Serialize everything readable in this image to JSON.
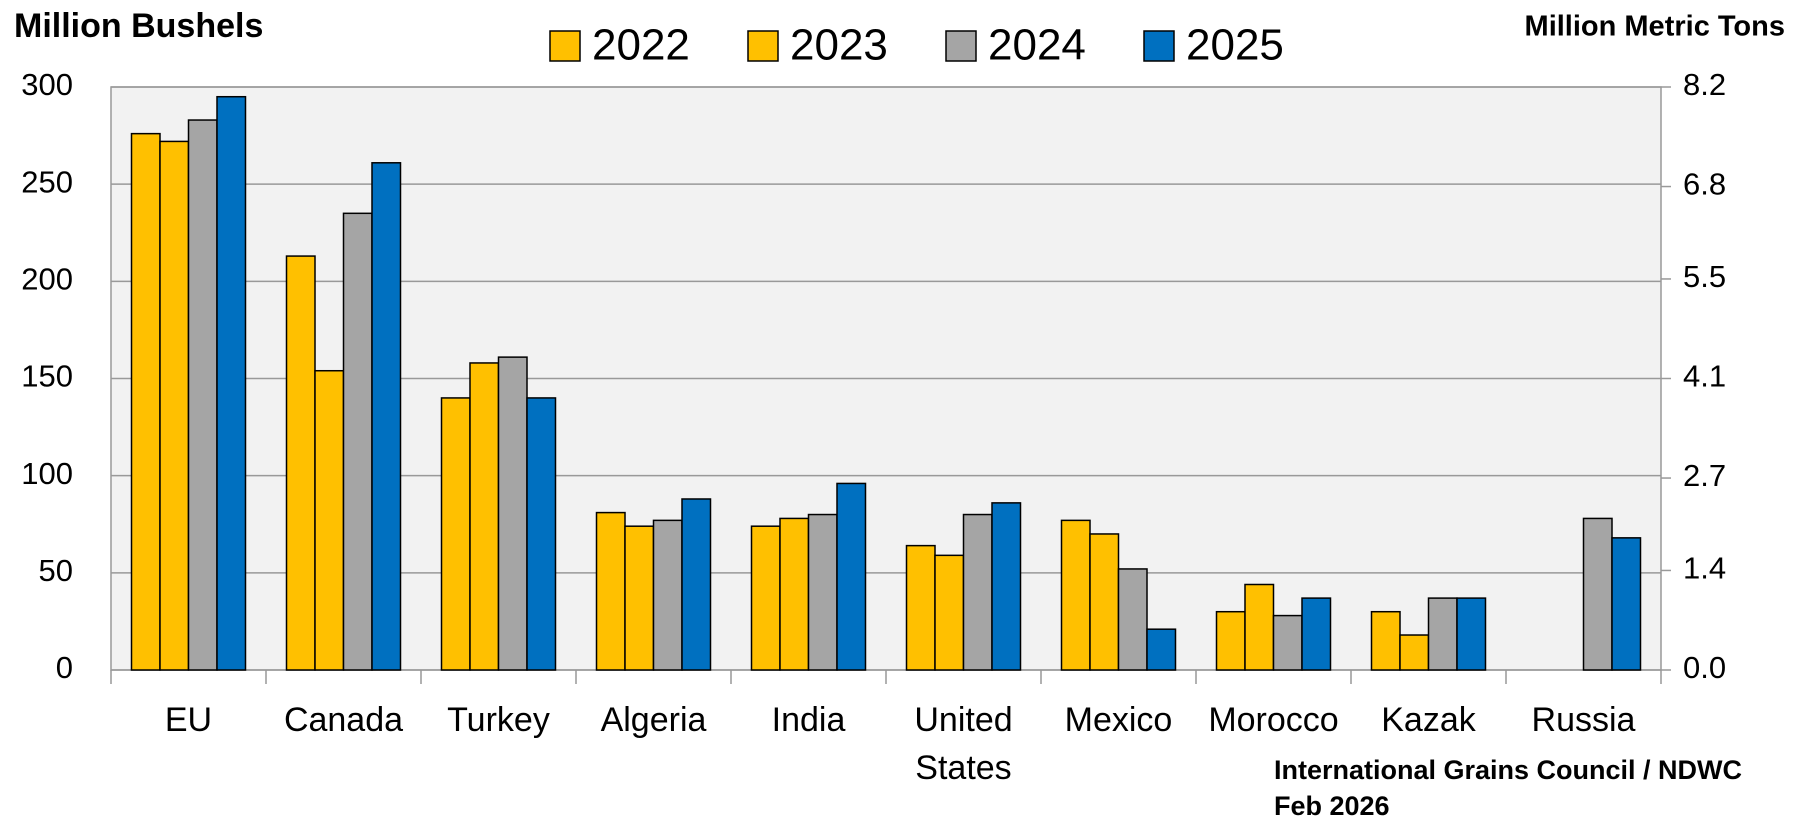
{
  "chart_data": {
    "type": "bar",
    "y_label": "Million Bushels",
    "y2_label": "Million Metric Tons",
    "annotations": [
      "International Grains Council / NDWC",
      "Feb 2026"
    ],
    "categories": [
      "EU",
      "Canada",
      "Turkey",
      "Algeria",
      "India",
      "United States",
      "Mexico",
      "Morocco",
      "Kazak",
      "Russia"
    ],
    "series": [
      {
        "name": "2022",
        "color": "#FFC000",
        "values": [
          276,
          213,
          140,
          81,
          74,
          64,
          77,
          30,
          30,
          null
        ]
      },
      {
        "name": "2023",
        "color": "#FFC000",
        "values": [
          272,
          154,
          158,
          74,
          78,
          59,
          70,
          44,
          18,
          null
        ]
      },
      {
        "name": "2024",
        "color": "#A5A5A5",
        "values": [
          283,
          235,
          161,
          77,
          80,
          80,
          52,
          28,
          37,
          78
        ]
      },
      {
        "name": "2025",
        "color": "#0070C0",
        "values": [
          295,
          261,
          140,
          88,
          96,
          86,
          21,
          37,
          37,
          68
        ]
      }
    ],
    "ylim": [
      0,
      300
    ],
    "yticks": [
      0,
      50,
      100,
      150,
      200,
      250,
      300
    ],
    "y2lim": [
      0,
      8.2
    ],
    "y2ticks": [
      {
        "value": 0,
        "label": "0.0"
      },
      1.4,
      2.7,
      4.1,
      5.5,
      6.8,
      8.2
    ],
    "grid": true,
    "legend": "top"
  }
}
